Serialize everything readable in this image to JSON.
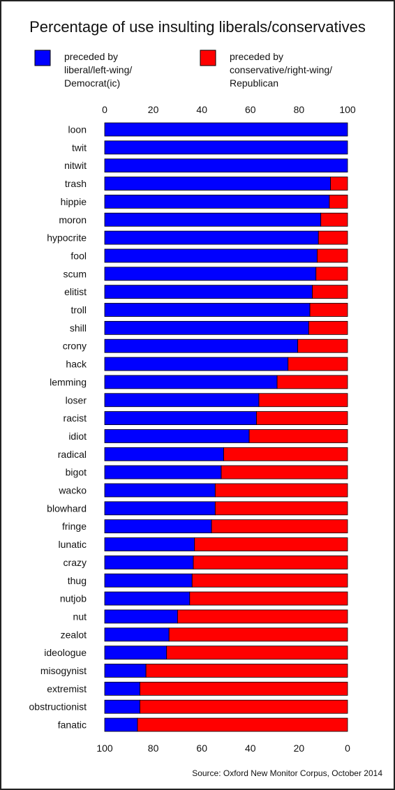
{
  "chart_data": {
    "type": "bar",
    "stacked": true,
    "orientation": "horizontal",
    "title": "Percentage of use insulting liberals/conservatives",
    "legend": [
      {
        "lines": [
          "preceded by",
          "liberal/left-wing/",
          "Democrat(ic)"
        ],
        "color": "#0000ff"
      },
      {
        "lines": [
          "preceded by",
          "conservative/right-wing/",
          "Republican"
        ],
        "color": "#ff0000"
      }
    ],
    "top_axis_ticks": [
      "0",
      "20",
      "40",
      "60",
      "80",
      "100"
    ],
    "bottom_axis_ticks": [
      "100",
      "80",
      "60",
      "40",
      "20",
      "0"
    ],
    "xlim": [
      0,
      100
    ],
    "categories": [
      "loon",
      "twit",
      "nitwit",
      "trash",
      "hippie",
      "moron",
      "hypocrite",
      "fool",
      "scum",
      "elitist",
      "troll",
      "shill",
      "crony",
      "hack",
      "lemming",
      "loser",
      "racist",
      "idiot",
      "radical",
      "bigot",
      "wacko",
      "blowhard",
      "fringe",
      "lunatic",
      "crazy",
      "thug",
      "nutjob",
      "nut",
      "zealot",
      "ideologue",
      "misogynist",
      "extremist",
      "obstructionist",
      "fanatic"
    ],
    "series": [
      {
        "name": "preceded by liberal/left-wing/Democrat(ic)",
        "color": "#0000ff",
        "values": [
          100,
          100,
          100,
          93,
          92.5,
          89,
          88,
          87.5,
          87,
          85.5,
          84.5,
          84,
          79.5,
          75.5,
          71,
          63.5,
          62.5,
          59.5,
          49,
          48,
          45.5,
          45.5,
          44,
          37,
          36.5,
          36,
          35,
          30,
          26.5,
          25.5,
          17,
          14.5,
          14.5,
          13.5
        ]
      },
      {
        "name": "preceded by conservative/right-wing/Republican",
        "color": "#ff0000",
        "values": [
          0,
          0,
          0,
          7,
          7.5,
          11,
          12,
          12.5,
          13,
          14.5,
          15.5,
          16,
          20.5,
          24.5,
          29,
          36.5,
          37.5,
          40.5,
          51,
          52,
          54.5,
          54.5,
          56,
          63,
          63.5,
          64,
          65,
          70,
          73.5,
          74.5,
          83,
          85.5,
          85.5,
          86.5
        ]
      }
    ],
    "source": "Source: Oxford New Monitor Corpus, October 2014"
  }
}
